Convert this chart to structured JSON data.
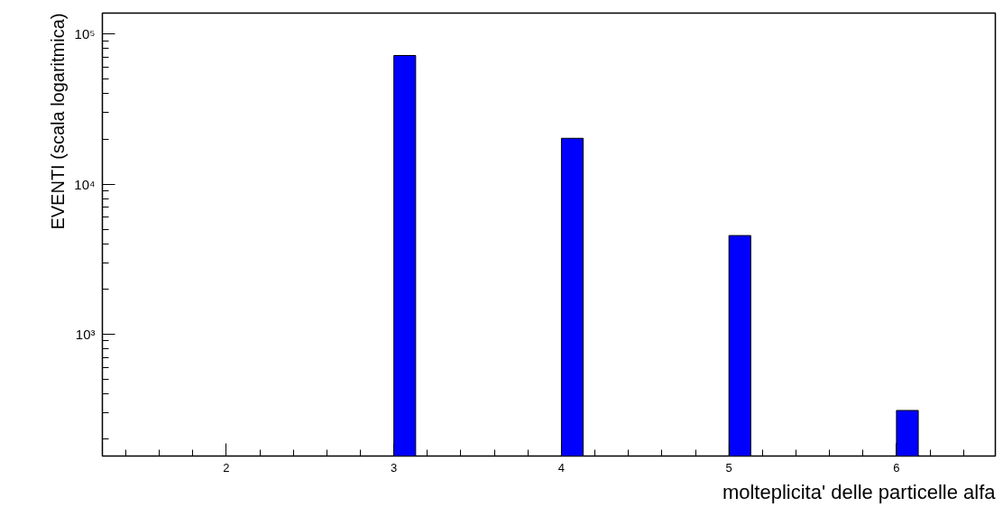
{
  "chart_data": {
    "type": "histogram",
    "xlabel": "molteplicita' delle particelle alfa",
    "ylabel": "EVENTI (scala logaritmica)",
    "bins": [
      3,
      3.13,
      4,
      4.13,
      5,
      5.13,
      6,
      6.13
    ],
    "values": [
      72000,
      null,
      20200,
      null,
      4540,
      null,
      310
    ],
    "color": "#0000ff",
    "log": true,
    "grid": false,
    "xlim": [
      1.26,
      6.59
    ],
    "xticks": [
      2,
      3,
      4,
      5,
      6
    ],
    "ylim": [
      154,
      138000
    ],
    "yticks": [
      {
        "value": 1000,
        "label": "10³"
      },
      {
        "value": 10000,
        "label": "10⁴"
      },
      {
        "value": 100000,
        "label": "10⁵"
      }
    ]
  }
}
